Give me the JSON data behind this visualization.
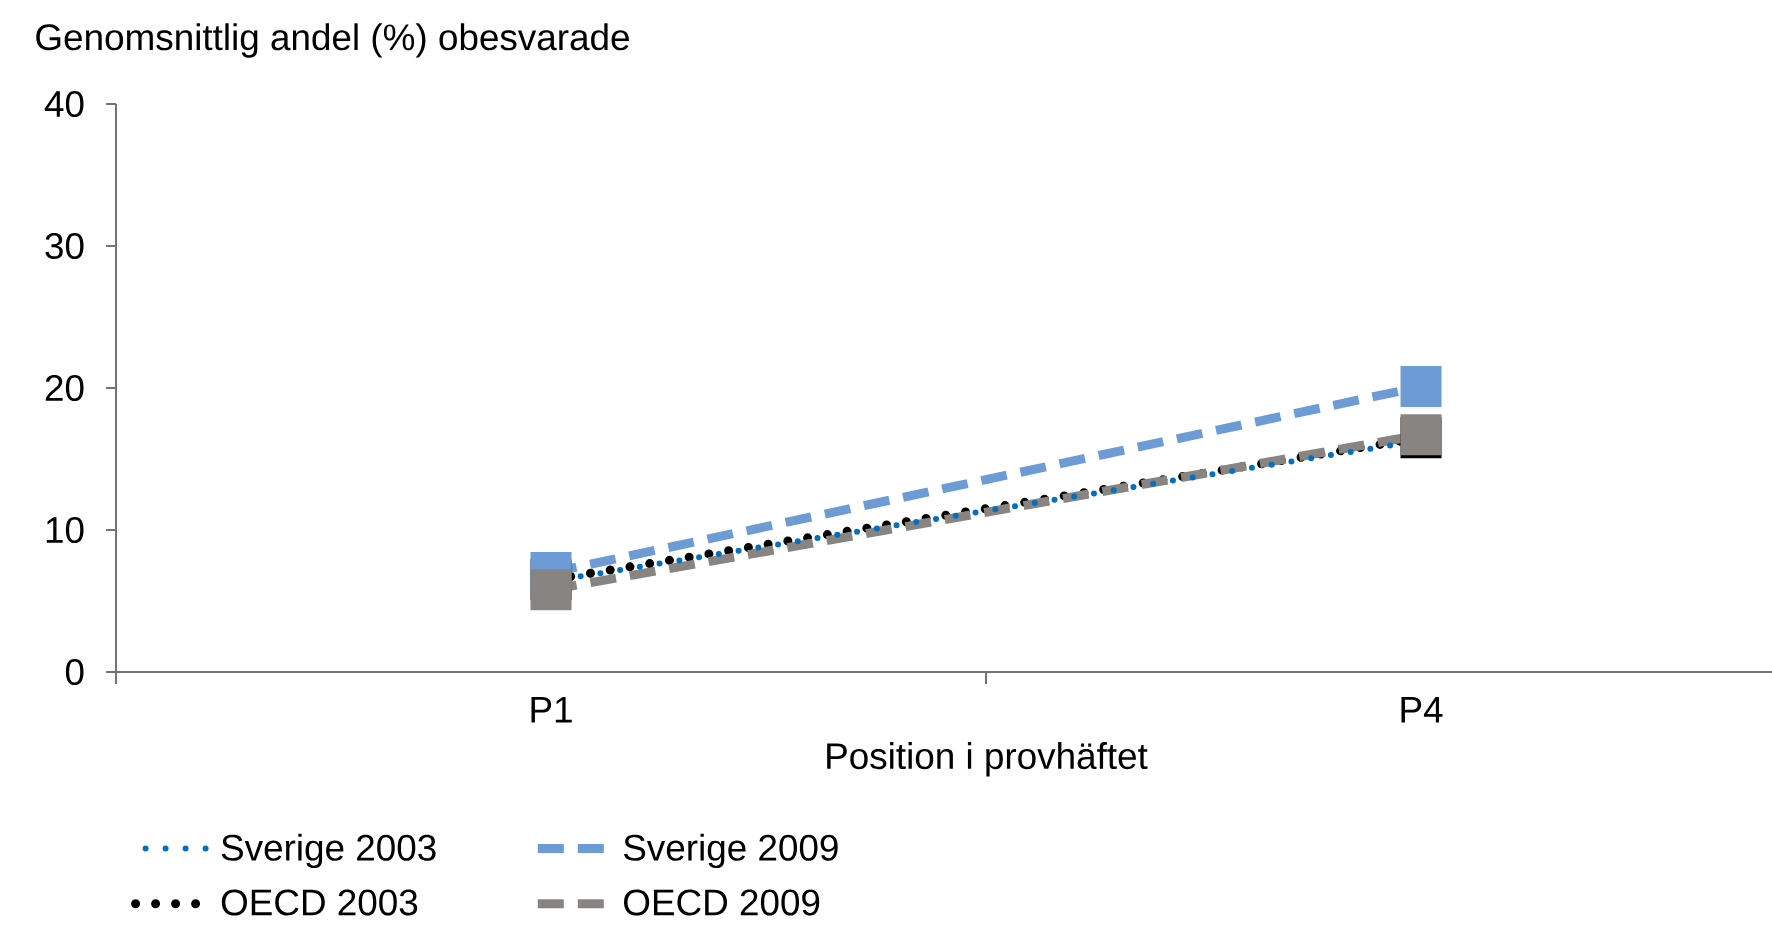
{
  "chart_data": {
    "type": "line",
    "ylabel": "Genomsnittlig andel (%) obesvarade",
    "xlabel": "Position i provhäftet",
    "categories": [
      "P1",
      "P4"
    ],
    "series": [
      {
        "name": "Sverige 2003",
        "color": "#0070c0",
        "values": [
          6.4,
          16.3
        ],
        "line_style": "dotted",
        "marker": "none"
      },
      {
        "name": "OECD 2003",
        "color": "#000000",
        "values": [
          6.5,
          16.5
        ],
        "line_style": "dotted",
        "marker": "square"
      },
      {
        "name": "Sverige 2009",
        "color": "#6c9bd6",
        "values": [
          7.0,
          20.1
        ],
        "line_style": "dashed",
        "marker": "square"
      },
      {
        "name": "OECD 2009",
        "color": "#878482",
        "values": [
          5.8,
          16.7
        ],
        "line_style": "dashed",
        "marker": "square"
      }
    ],
    "ylim": [
      0,
      40
    ],
    "yticks": [
      0,
      10,
      20,
      30,
      40
    ],
    "legend": "bottom"
  }
}
